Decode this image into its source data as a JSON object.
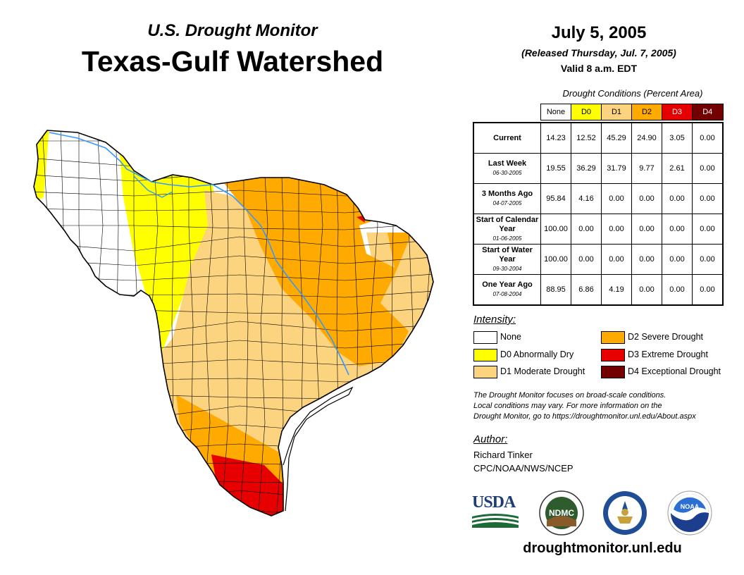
{
  "header": {
    "subtitle": "U.S. Drought Monitor",
    "title": "Texas-Gulf Watershed",
    "date": "July 5, 2005",
    "released": "(Released Thursday, Jul. 7, 2005)",
    "valid": "Valid 8 a.m. EDT"
  },
  "table": {
    "caption": "Drought Conditions (Percent Area)",
    "columns": [
      "None",
      "D0",
      "D1",
      "D2",
      "D3",
      "D4"
    ],
    "rows": [
      {
        "label": "Current",
        "date": "",
        "values": [
          "14.23",
          "12.52",
          "45.29",
          "24.90",
          "3.05",
          "0.00"
        ]
      },
      {
        "label": "Last Week",
        "date": "06-30-2005",
        "values": [
          "19.55",
          "36.29",
          "31.79",
          "9.77",
          "2.61",
          "0.00"
        ]
      },
      {
        "label": "3 Months Ago",
        "date": "04-07-2005",
        "values": [
          "95.84",
          "4.16",
          "0.00",
          "0.00",
          "0.00",
          "0.00"
        ]
      },
      {
        "label": "Start of Calendar Year",
        "date": "01-06-2005",
        "values": [
          "100.00",
          "0.00",
          "0.00",
          "0.00",
          "0.00",
          "0.00"
        ]
      },
      {
        "label": "Start of Water Year",
        "date": "09-30-2004",
        "values": [
          "100.00",
          "0.00",
          "0.00",
          "0.00",
          "0.00",
          "0.00"
        ]
      },
      {
        "label": "One Year Ago",
        "date": "07-08-2004",
        "values": [
          "88.95",
          "6.86",
          "4.19",
          "0.00",
          "0.00",
          "0.00"
        ]
      }
    ]
  },
  "legend": {
    "title": "Intensity:",
    "items": [
      {
        "code": "None",
        "label": "None",
        "color": "#ffffff"
      },
      {
        "code": "D0",
        "label": "D0 Abnormally Dry",
        "color": "#ffff00"
      },
      {
        "code": "D1",
        "label": "D1 Moderate Drought",
        "color": "#fcd37f"
      },
      {
        "code": "D2",
        "label": "D2 Severe Drought",
        "color": "#ffaa00"
      },
      {
        "code": "D3",
        "label": "D3 Extreme Drought",
        "color": "#e60000"
      },
      {
        "code": "D4",
        "label": "D4 Exceptional Drought",
        "color": "#730000"
      }
    ]
  },
  "note": {
    "line1": "The Drought Monitor focuses on broad-scale conditions.",
    "line2": "Local conditions may vary. For more information on the",
    "line3": "Drought Monitor, go to https://droughtmonitor.unl.edu/About.aspx"
  },
  "author": {
    "title": "Author:",
    "name": "Richard Tinker",
    "org": "CPC/NOAA/NWS/NCEP"
  },
  "logos": {
    "usda": "USDA",
    "ndmc": "NDMC",
    "noaa": "NOAA"
  },
  "website": "droughtmonitor.unl.edu",
  "colors": {
    "river": "#3399ff",
    "county_line": "#000000"
  }
}
